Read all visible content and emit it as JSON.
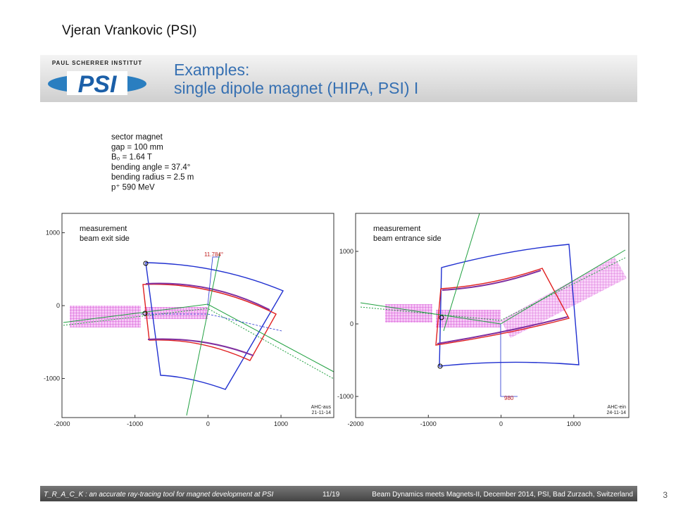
{
  "author": "Vjeran Vrankovic (PSI)",
  "header": {
    "institute": "PAUL SCHERRER INSTITUT",
    "logo": "PSI",
    "title_lines": [
      "Examples:",
      "single dipole magnet (HIPA, PSI) I"
    ]
  },
  "parameters": [
    "sector magnet",
    "gap = 100 mm",
    "B₀ = 1.64 T",
    "bending angle = 37.4°",
    "bending radius = 2.5 m",
    "p⁺ 590 MeV"
  ],
  "plots": [
    {
      "labels": [
        "measurement",
        "beam exit side"
      ],
      "annotation": "11.784°",
      "stamp": [
        "AHC-aus",
        "21-11-14"
      ],
      "xlim": [
        -2000,
        1723
      ],
      "ylim": [
        -1536,
        1266
      ],
      "xticks": [
        -2000,
        -1000,
        0,
        1000
      ],
      "yticks": [
        1000,
        0,
        -1000
      ]
    },
    {
      "labels": [
        "measurement",
        "beam entrance side"
      ],
      "annotation": "980",
      "stamp": [
        "AHC-ein",
        "24-11-14"
      ],
      "xlim": [
        -2000,
        1757
      ],
      "ylim": [
        -1291,
        1524
      ],
      "xticks": [
        -2000,
        -1000,
        0,
        1000
      ],
      "yticks": [
        1000,
        0,
        -1000
      ]
    }
  ],
  "footer": {
    "left": "T_R_A_C_K : an accurate ray-tracing tool for magnet development at PSI",
    "page": "11/19",
    "right": "Beam Dynamics meets Magnets-II, December 2014, PSI, Bad Zurzach, Switzerland"
  },
  "slide_number": "3"
}
